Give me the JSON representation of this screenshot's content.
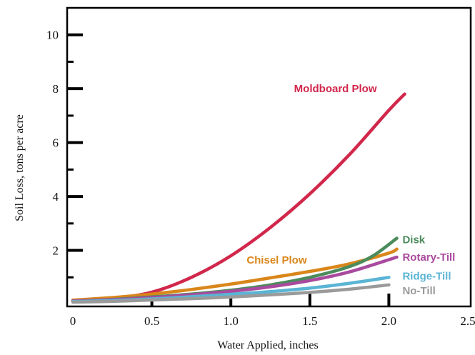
{
  "chart_data": {
    "type": "line",
    "xlabel": "Water Applied, inches",
    "ylabel": "Soil Loss, tons per acre",
    "xlim": [
      0,
      2.5
    ],
    "ylim": [
      0,
      11
    ],
    "x_ticks": [
      "0",
      "0.5",
      "1.0",
      "1.5",
      "2.0",
      "2.5"
    ],
    "y_ticks": [
      "2",
      "4",
      "6",
      "8",
      "10"
    ],
    "grid": false,
    "legend": "labels at line ends",
    "series": [
      {
        "name": "Moldboard Plow",
        "color": "#d1274b",
        "points": [
          [
            0,
            0.15
          ],
          [
            0.25,
            0.22
          ],
          [
            0.5,
            0.45
          ],
          [
            0.75,
            1.0
          ],
          [
            1.0,
            1.8
          ],
          [
            1.25,
            2.85
          ],
          [
            1.5,
            4.1
          ],
          [
            1.75,
            5.55
          ],
          [
            2.0,
            7.2
          ],
          [
            2.1,
            7.8
          ]
        ]
      },
      {
        "name": "Chisel Plow",
        "color": "#d9861a",
        "points": [
          [
            0,
            0.15
          ],
          [
            0.25,
            0.25
          ],
          [
            0.5,
            0.38
          ],
          [
            0.75,
            0.55
          ],
          [
            1.0,
            0.75
          ],
          [
            1.25,
            0.98
          ],
          [
            1.5,
            1.22
          ],
          [
            1.75,
            1.5
          ],
          [
            2.0,
            1.9
          ],
          [
            2.05,
            2.05
          ]
        ]
      },
      {
        "name": "Disk",
        "color": "#4b8b5c",
        "points": [
          [
            0,
            0.12
          ],
          [
            0.25,
            0.18
          ],
          [
            0.5,
            0.27
          ],
          [
            0.75,
            0.38
          ],
          [
            1.0,
            0.52
          ],
          [
            1.25,
            0.72
          ],
          [
            1.5,
            1.0
          ],
          [
            1.75,
            1.4
          ],
          [
            1.9,
            1.8
          ],
          [
            2.05,
            2.45
          ]
        ]
      },
      {
        "name": "Rotary-Till",
        "color": "#a94a9e",
        "points": [
          [
            0,
            0.12
          ],
          [
            0.25,
            0.17
          ],
          [
            0.5,
            0.25
          ],
          [
            0.75,
            0.35
          ],
          [
            1.0,
            0.48
          ],
          [
            1.25,
            0.65
          ],
          [
            1.5,
            0.88
          ],
          [
            1.75,
            1.2
          ],
          [
            2.05,
            1.75
          ]
        ]
      },
      {
        "name": "Ridge-Till",
        "color": "#5ab4d4",
        "points": [
          [
            0,
            0.1
          ],
          [
            0.25,
            0.14
          ],
          [
            0.5,
            0.2
          ],
          [
            0.75,
            0.28
          ],
          [
            1.0,
            0.37
          ],
          [
            1.25,
            0.47
          ],
          [
            1.5,
            0.6
          ],
          [
            1.75,
            0.78
          ],
          [
            2.0,
            1.0
          ]
        ]
      },
      {
        "name": "No-Till",
        "color": "#9a9a9a",
        "points": [
          [
            0,
            0.08
          ],
          [
            0.25,
            0.11
          ],
          [
            0.5,
            0.16
          ],
          [
            0.75,
            0.21
          ],
          [
            1.0,
            0.27
          ],
          [
            1.25,
            0.35
          ],
          [
            1.5,
            0.44
          ],
          [
            1.75,
            0.56
          ],
          [
            2.0,
            0.72
          ]
        ]
      }
    ]
  }
}
